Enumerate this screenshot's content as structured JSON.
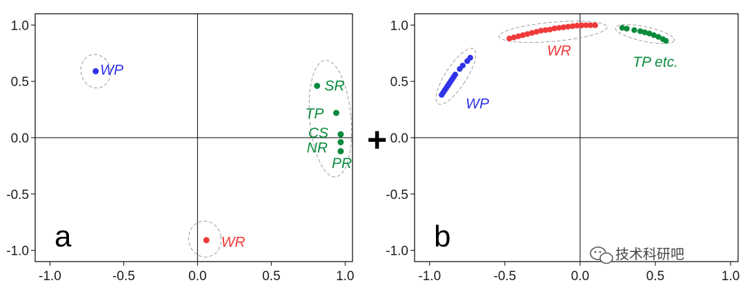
{
  "colors": {
    "blue": "#2f34e8",
    "red": "#f03a3a",
    "green": "#0a8a3c",
    "axis": "#000000",
    "ellipse": "#9a9a9a"
  },
  "plus_sign": "+",
  "watermark": {
    "text": "技术科研吧",
    "icon": "wechat-icon"
  },
  "chart_data": [
    {
      "type": "scatter",
      "panel_label": "a",
      "xlim": [
        -1.1,
        1.05
      ],
      "ylim": [
        -1.1,
        1.1
      ],
      "xticks": [
        "-1.0",
        "-0.5",
        "0.0",
        "0.5",
        "1.0"
      ],
      "yticks": [
        "1.0",
        "0.5",
        "0.0",
        "-0.5",
        "-1.0"
      ],
      "series": [
        {
          "name": "WP",
          "color": "blue",
          "points": [
            [
              -0.69,
              0.59
            ]
          ]
        },
        {
          "name": "WR",
          "color": "red",
          "points": [
            [
              0.06,
              -0.91
            ]
          ]
        },
        {
          "name": "SR",
          "color": "green",
          "points": [
            [
              0.81,
              0.46
            ]
          ]
        },
        {
          "name": "TP",
          "color": "green",
          "points": [
            [
              0.94,
              0.22
            ]
          ]
        },
        {
          "name": "CS",
          "color": "green",
          "points": [
            [
              0.97,
              0.03
            ]
          ]
        },
        {
          "name": "NR",
          "color": "green",
          "points": [
            [
              0.97,
              -0.04
            ]
          ]
        },
        {
          "name": "PR",
          "color": "green",
          "points": [
            [
              0.97,
              -0.12
            ]
          ]
        }
      ],
      "labels": [
        {
          "text": "WP",
          "color": "blue",
          "x": -0.66,
          "y": 0.56
        },
        {
          "text": "WR",
          "color": "red",
          "x": 0.16,
          "y": -0.97
        },
        {
          "text": "SR",
          "color": "green",
          "x": 0.86,
          "y": 0.42
        },
        {
          "text": "TP",
          "color": "green",
          "x": 0.73,
          "y": 0.17
        },
        {
          "text": "CS",
          "color": "green",
          "x": 0.75,
          "y": 0.0
        },
        {
          "text": "NR",
          "color": "green",
          "x": 0.74,
          "y": -0.13
        },
        {
          "text": "PR",
          "color": "green",
          "x": 0.91,
          "y": -0.27
        }
      ],
      "ellipses": [
        {
          "cx": -0.69,
          "cy": 0.59,
          "rx": 0.1,
          "ry": 0.15,
          "rot": -15
        },
        {
          "cx": 0.05,
          "cy": -0.9,
          "rx": 0.11,
          "ry": 0.16,
          "rot": -10
        },
        {
          "cx": 0.9,
          "cy": 0.17,
          "rx": 0.14,
          "ry": 0.52,
          "rot": -5
        }
      ]
    },
    {
      "type": "scatter",
      "panel_label": "b",
      "xlim": [
        -1.1,
        1.05
      ],
      "ylim": [
        -1.1,
        1.1
      ],
      "xticks": [
        "-1.0",
        "-0.5",
        "0.0",
        "0.5",
        "1.0"
      ],
      "yticks": [
        "1.0",
        "0.5",
        "0.0",
        "-0.5",
        "-1.0"
      ],
      "series": [
        {
          "name": "WP",
          "color": "blue",
          "points": [
            [
              -0.92,
              0.38
            ],
            [
              -0.91,
              0.4
            ],
            [
              -0.9,
              0.42
            ],
            [
              -0.89,
              0.44
            ],
            [
              -0.88,
              0.46
            ],
            [
              -0.87,
              0.48
            ],
            [
              -0.86,
              0.5
            ],
            [
              -0.85,
              0.52
            ],
            [
              -0.84,
              0.54
            ],
            [
              -0.83,
              0.56
            ],
            [
              -0.8,
              0.61
            ],
            [
              -0.78,
              0.64
            ],
            [
              -0.75,
              0.68
            ],
            [
              -0.73,
              0.71
            ]
          ]
        },
        {
          "name": "WR",
          "color": "red",
          "points": [
            [
              -0.47,
              0.88
            ],
            [
              -0.44,
              0.89
            ],
            [
              -0.41,
              0.9
            ],
            [
              -0.38,
              0.91
            ],
            [
              -0.35,
              0.92
            ],
            [
              -0.32,
              0.93
            ],
            [
              -0.29,
              0.94
            ],
            [
              -0.26,
              0.95
            ],
            [
              -0.23,
              0.955
            ],
            [
              -0.2,
              0.96
            ],
            [
              -0.17,
              0.97
            ],
            [
              -0.14,
              0.975
            ],
            [
              -0.11,
              0.98
            ],
            [
              -0.08,
              0.985
            ],
            [
              -0.05,
              0.99
            ],
            [
              -0.02,
              0.995
            ],
            [
              0.01,
              0.997
            ],
            [
              0.04,
              0.998
            ],
            [
              0.07,
              0.998
            ],
            [
              0.1,
              0.998
            ]
          ]
        },
        {
          "name": "TP",
          "color": "green",
          "points": [
            [
              0.28,
              0.975
            ],
            [
              0.31,
              0.968
            ],
            [
              0.36,
              0.955
            ],
            [
              0.4,
              0.945
            ],
            [
              0.43,
              0.935
            ],
            [
              0.46,
              0.925
            ],
            [
              0.49,
              0.91
            ],
            [
              0.52,
              0.895
            ],
            [
              0.55,
              0.875
            ],
            [
              0.57,
              0.86
            ]
          ]
        }
      ],
      "labels": [
        {
          "text": "WP",
          "color": "blue",
          "x": -0.76,
          "y": 0.26
        },
        {
          "text": "WR",
          "color": "red",
          "x": -0.22,
          "y": 0.73
        },
        {
          "text": "TP etc.",
          "color": "green",
          "x": 0.35,
          "y": 0.63
        }
      ],
      "ellipses": [
        {
          "cx": -0.825,
          "cy": 0.545,
          "rx": 0.07,
          "ry": 0.29,
          "rot": 33
        },
        {
          "cx": -0.18,
          "cy": 0.94,
          "rx": 0.36,
          "ry": 0.085,
          "rot": -5
        },
        {
          "cx": 0.43,
          "cy": 0.92,
          "rx": 0.2,
          "ry": 0.065,
          "rot": 12
        }
      ]
    }
  ]
}
